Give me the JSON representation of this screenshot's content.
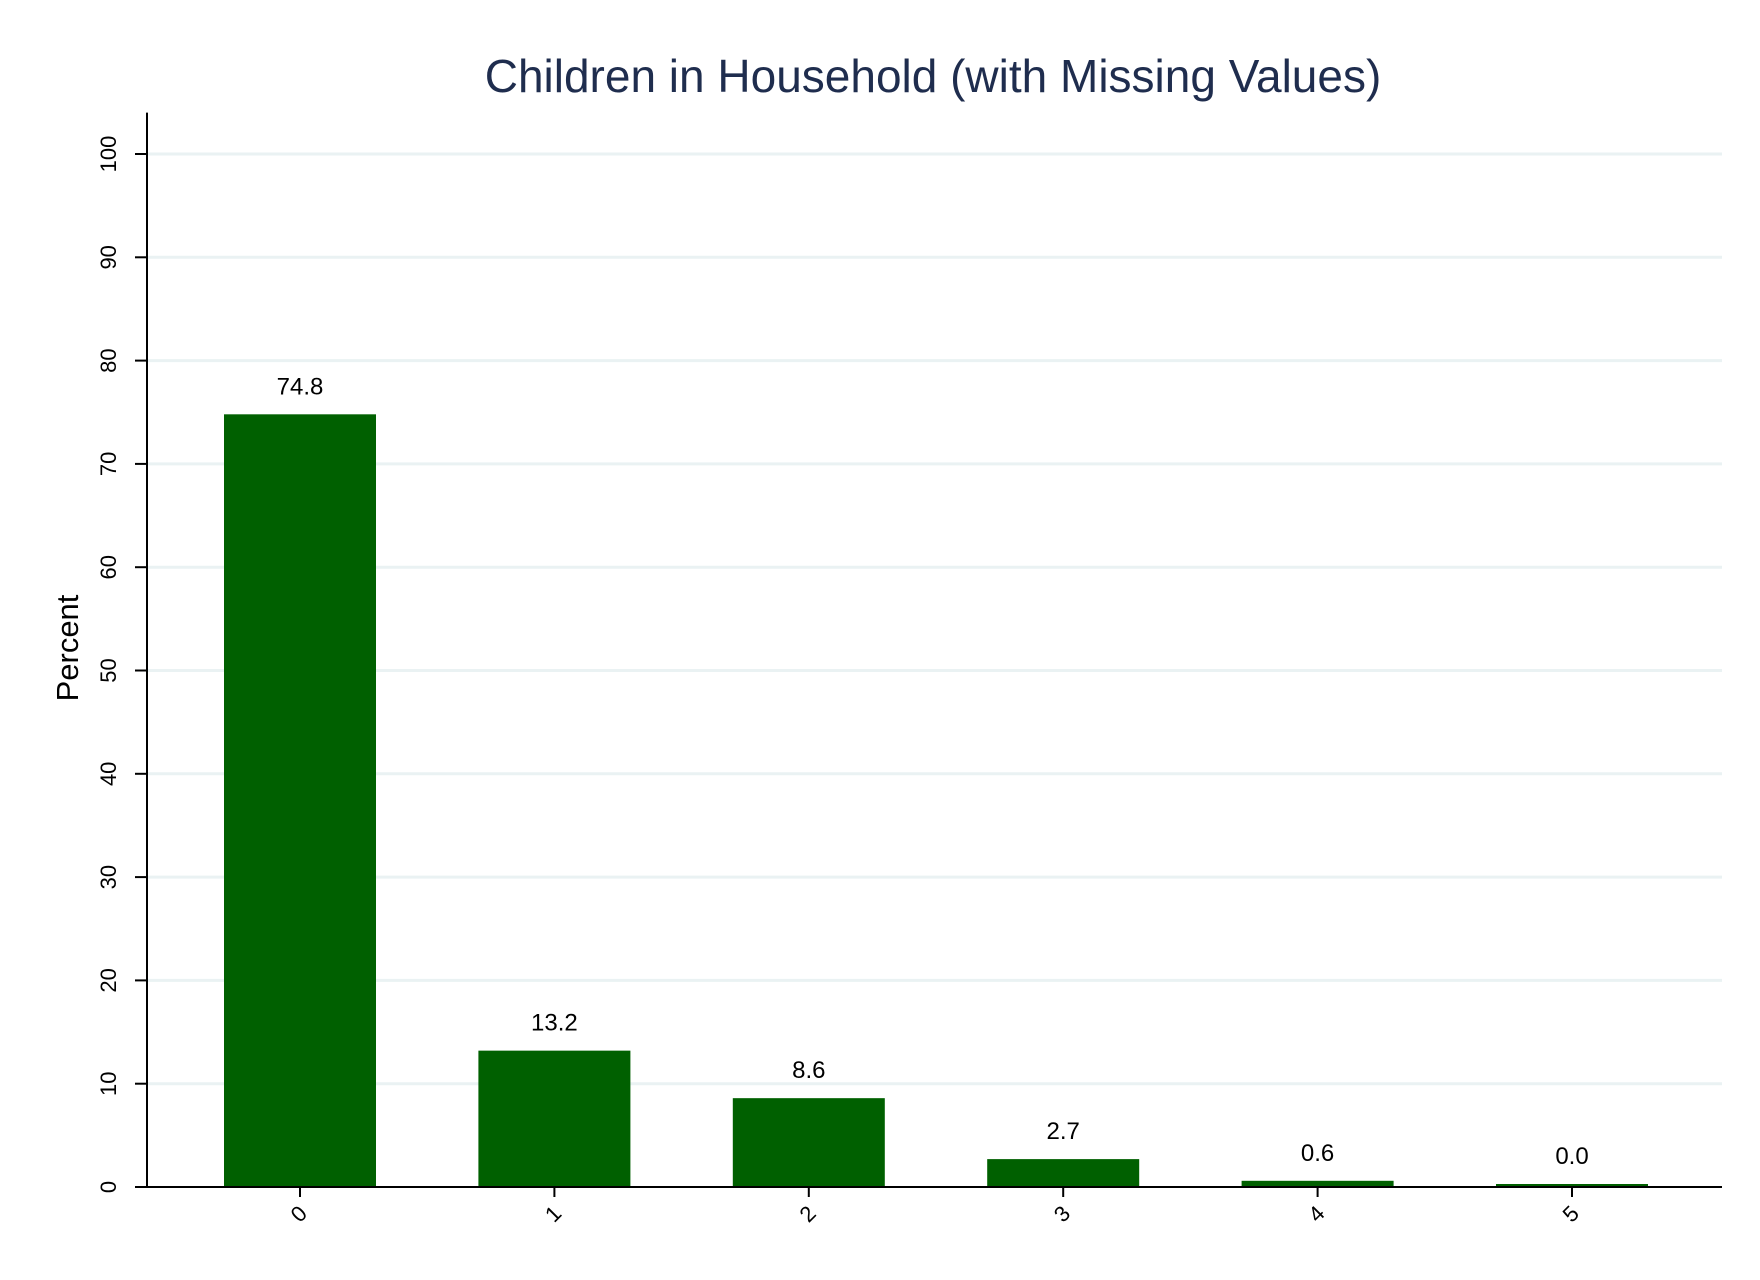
{
  "chart_data": {
    "type": "bar",
    "title": "Children in Household (with Missing Values)",
    "xlabel": "",
    "ylabel": "Percent",
    "categories": [
      "0",
      "1",
      "2",
      "3",
      "4",
      "5"
    ],
    "values": [
      74.8,
      13.2,
      8.6,
      2.7,
      0.6,
      0.0
    ],
    "data_labels": [
      "74.8",
      "13.2",
      "8.6",
      "2.7",
      "0.6",
      "0.0"
    ],
    "ylim": [
      0,
      104
    ],
    "yticks": [
      0,
      10,
      20,
      30,
      40,
      50,
      60,
      70,
      80,
      90,
      100
    ],
    "grid": true,
    "legend": "none",
    "bar_color": "#006000",
    "grid_color": "#eaf2f3",
    "title_color": "#1f2d4e"
  }
}
